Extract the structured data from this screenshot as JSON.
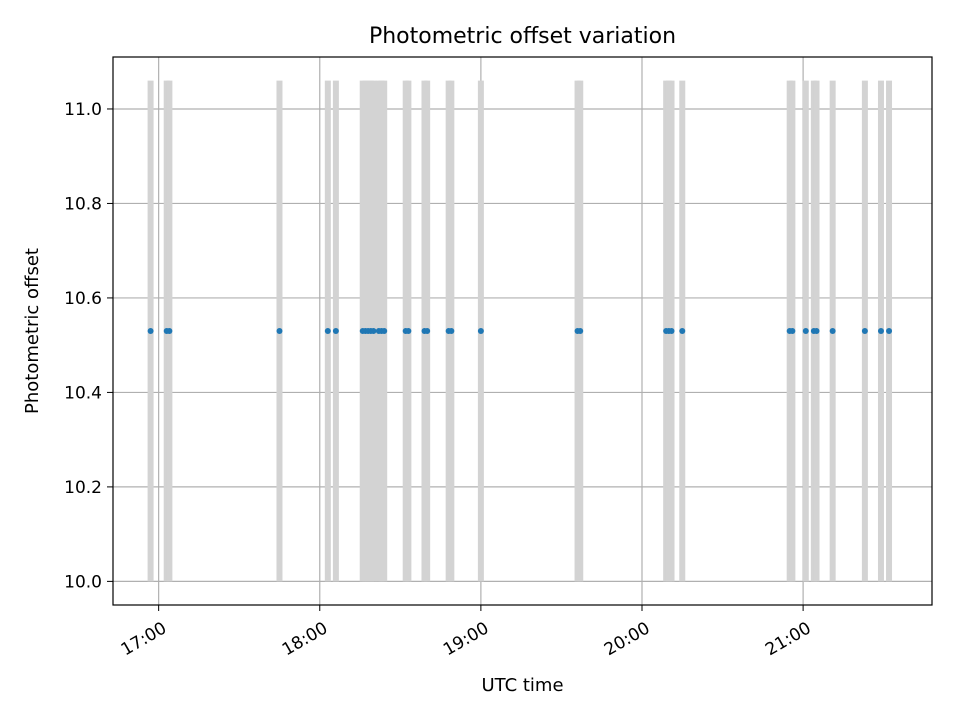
{
  "chart_data": {
    "type": "scatter",
    "title": "Photometric offset variation",
    "xlabel": "UTC time",
    "ylabel": "Photometric offset",
    "x_ticks": [
      "17:00",
      "18:00",
      "19:00",
      "20:00",
      "21:00"
    ],
    "y_ticks": [
      "10.0",
      "10.2",
      "10.4",
      "10.6",
      "10.8",
      "11.0"
    ],
    "xlim": [
      "16:43",
      "21:48"
    ],
    "ylim": [
      9.95,
      11.11
    ],
    "grid": true,
    "points": {
      "y": 10.53,
      "x": [
        "16:57",
        "17:03",
        "17:04",
        "17:45",
        "18:03",
        "18:06",
        "18:16",
        "18:17",
        "18:18",
        "18:19",
        "18:20",
        "18:22",
        "18:23",
        "18:24",
        "18:32",
        "18:33",
        "18:39",
        "18:40",
        "18:48",
        "18:49",
        "19:00",
        "19:36",
        "19:37",
        "20:09",
        "20:10",
        "20:11",
        "20:15",
        "20:55",
        "20:56",
        "21:01",
        "21:04",
        "21:05",
        "21:11",
        "21:23",
        "21:29",
        "21:32"
      ],
      "color": "#1f77b4"
    },
    "bands": {
      "y_range": [
        10.0,
        11.06
      ],
      "x": [
        "16:57",
        "17:03",
        "17:04",
        "17:45",
        "18:03",
        "18:06",
        "18:16",
        "18:17",
        "18:18",
        "18:19",
        "18:20",
        "18:22",
        "18:23",
        "18:24",
        "18:32",
        "18:33",
        "18:39",
        "18:40",
        "18:48",
        "18:49",
        "19:00",
        "19:36",
        "19:37",
        "20:09",
        "20:10",
        "20:11",
        "20:15",
        "20:55",
        "20:56",
        "21:01",
        "21:04",
        "21:05",
        "21:11",
        "21:23",
        "21:29",
        "21:32"
      ],
      "color": "#d3d3d3"
    }
  }
}
